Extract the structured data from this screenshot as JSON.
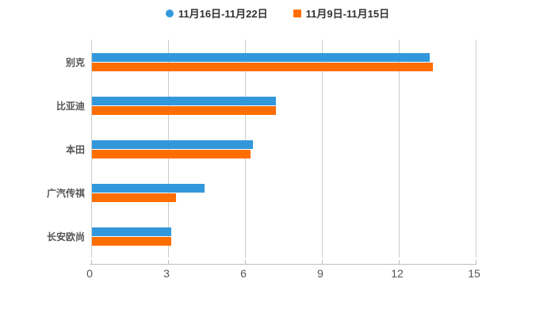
{
  "legend": {
    "items": [
      {
        "label": "11月16日-11月22日",
        "marker": "circle",
        "color": "#3398db"
      },
      {
        "label": "11月9日-11月15日",
        "marker": "square",
        "color": "#ff6e00"
      }
    ]
  },
  "chart_data": {
    "type": "bar",
    "orientation": "horizontal",
    "title": "",
    "xlabel": "",
    "ylabel": "",
    "categories": [
      "别克",
      "比亚迪",
      "本田",
      "广汽传祺",
      "长安欧尚"
    ],
    "series": [
      {
        "name": "11月16日-11月22日",
        "color": "#3398db",
        "values": [
          13.2,
          7.2,
          6.3,
          4.4,
          3.1
        ]
      },
      {
        "name": "11月9日-11月15日",
        "color": "#ff6e00",
        "values": [
          13.3,
          7.2,
          6.2,
          3.3,
          3.1
        ]
      }
    ],
    "xlim": [
      0,
      15
    ],
    "x_ticks": [
      0,
      3,
      6,
      9,
      12,
      15
    ],
    "grid": true,
    "legend_position": "top",
    "colors": {
      "gridline": "#cccccc",
      "axis": "#bfbfbf",
      "tick_label": "#555555",
      "category_label": "#555555",
      "legend_text": "#333333",
      "background": "#ffffff"
    }
  }
}
